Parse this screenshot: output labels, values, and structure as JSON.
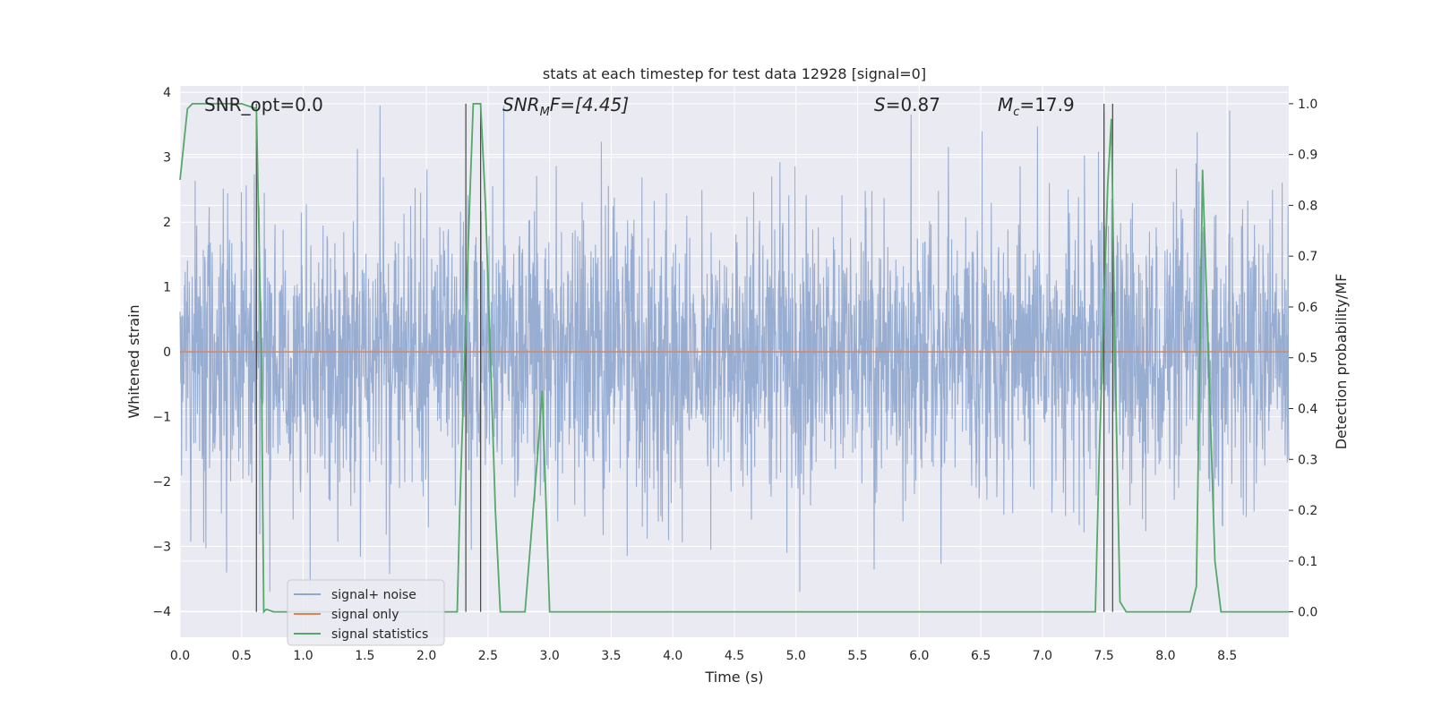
{
  "chart_data": {
    "type": "line",
    "title": "stats at each timestep for test data 12928 [signal=0]",
    "xlabel": "Time (s)",
    "ylabel": "Whitened strain",
    "y2label": "Detection probability/MF",
    "xlim": [
      0,
      9.0
    ],
    "ylim": [
      -4.4,
      4.1
    ],
    "y2lim": [
      -0.05,
      1.035
    ],
    "xticks": [
      "0.0",
      "0.5",
      "1.0",
      "1.5",
      "2.0",
      "2.5",
      "3.0",
      "3.5",
      "4.0",
      "4.5",
      "5.0",
      "5.5",
      "6.0",
      "6.5",
      "7.0",
      "7.5",
      "8.0",
      "8.5"
    ],
    "yticks": [
      "4",
      "3",
      "2",
      "1",
      "0",
      "−1",
      "−2",
      "−3",
      "−4"
    ],
    "y2ticks": [
      "1.0",
      "0.9",
      "0.8",
      "0.7",
      "0.6",
      "0.5",
      "0.4",
      "0.3",
      "0.2",
      "0.1",
      "0.0"
    ],
    "grid": true,
    "legend_position": "lower-left",
    "annotations": {
      "snr_opt": "SNR_opt=0.0",
      "snr_mf_base": "SNR",
      "snr_mf_sub": "M",
      "snr_mf_rest": "F=[4.45]",
      "s_var": "S",
      "s_rest": "=0.87",
      "mc_base": "M",
      "mc_sub": "c",
      "mc_rest": "=17.9"
    },
    "series": [
      {
        "name": "signal+ noise",
        "color": "#8fa6ce",
        "kind": "noise",
        "typical_amplitude": 1.6,
        "peak_range": [
          -3.7,
          3.8
        ]
      },
      {
        "name": "signal only",
        "color": "#dd8452",
        "x": [
          0,
          9.0
        ],
        "y": [
          0,
          0
        ]
      },
      {
        "name": "signal statistics",
        "color": "#55a868",
        "axis": "right",
        "x": [
          0,
          0.06,
          0.1,
          0.5,
          0.62,
          0.66,
          0.68,
          0.7,
          0.76,
          2.25,
          2.27,
          2.35,
          2.38,
          2.44,
          2.48,
          2.56,
          2.6,
          2.8,
          2.9,
          2.94,
          3.0,
          7.43,
          7.46,
          7.53,
          7.56,
          7.59,
          7.63,
          7.68,
          8.2,
          8.25,
          8.3,
          8.4,
          8.45,
          9.0
        ],
        "y": [
          0.85,
          0.99,
          1.0,
          1.0,
          0.99,
          0.5,
          0.0,
          0.005,
          0.0,
          0.0,
          0.2,
          0.8,
          1.0,
          1.0,
          0.8,
          0.2,
          0.0,
          0.0,
          0.3,
          0.435,
          0.0,
          0.0,
          0.3,
          0.84,
          0.97,
          0.5,
          0.02,
          0.0,
          0.0,
          0.05,
          0.87,
          0.1,
          0.0,
          0.0
        ]
      }
    ],
    "vlines_x": [
      0.62,
      2.32,
      2.44,
      7.5,
      7.57
    ]
  }
}
